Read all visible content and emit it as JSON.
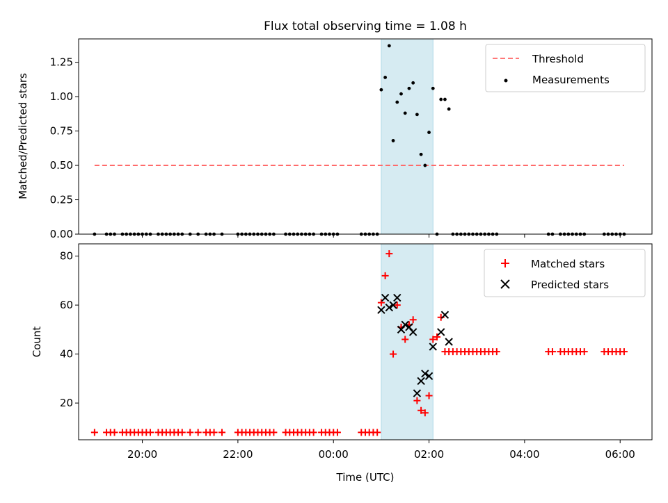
{
  "title": "Flux total observing time = 1.08 h",
  "colors": {
    "threshold": "#ff6666",
    "span": "#add8e6",
    "matched": "#ff0000",
    "predicted": "#000000",
    "measurement": "#000000"
  },
  "chart_data": [
    {
      "type": "scatter",
      "ylabel": "Matched/Predicted stars",
      "ylim": [
        0,
        1.42
      ],
      "yticks": [
        0.0,
        0.25,
        0.5,
        0.75,
        1.0,
        1.25
      ],
      "ytick_labels": [
        "0.00",
        "0.25",
        "0.50",
        "0.75",
        "1.00",
        "1.25"
      ],
      "legend": {
        "position": "top-right",
        "entries": [
          "Threshold",
          "Measurements"
        ]
      },
      "threshold": {
        "y": 0.5,
        "x_start": "19:00",
        "x_end": "06:05"
      },
      "shaded_span": {
        "x_start": "01:00",
        "x_end": "02:05"
      },
      "series": [
        {
          "name": "Measurements",
          "x": [
            "19:00",
            "19:15",
            "19:20",
            "19:25",
            "19:35",
            "19:40",
            "19:45",
            "19:50",
            "19:55",
            "20:00",
            "20:05",
            "20:10",
            "20:20",
            "20:25",
            "20:30",
            "20:35",
            "20:40",
            "20:45",
            "20:50",
            "21:00",
            "21:10",
            "21:20",
            "21:25",
            "21:30",
            "21:40",
            "22:00",
            "22:05",
            "22:10",
            "22:15",
            "22:20",
            "22:25",
            "22:30",
            "22:35",
            "22:40",
            "22:45",
            "23:00",
            "23:05",
            "23:10",
            "23:15",
            "23:20",
            "23:25",
            "23:30",
            "23:35",
            "23:45",
            "23:50",
            "23:55",
            "24:00",
            "24:05",
            "24:35",
            "24:40",
            "24:45",
            "24:50",
            "24:55",
            "25:00",
            "25:05",
            "25:10",
            "25:15",
            "25:20",
            "25:25",
            "25:30",
            "25:35",
            "25:40",
            "25:45",
            "25:50",
            "25:55",
            "26:00",
            "26:05",
            "26:10",
            "26:15",
            "26:20",
            "26:25",
            "26:30",
            "26:35",
            "26:40",
            "26:45",
            "26:50",
            "26:55",
            "27:00",
            "27:05",
            "27:10",
            "27:15",
            "27:20",
            "27:25",
            "28:30",
            "28:35",
            "28:45",
            "28:50",
            "28:55",
            "29:00",
            "29:05",
            "29:10",
            "29:15",
            "29:40",
            "29:45",
            "29:50",
            "29:55",
            "30:00",
            "30:05"
          ],
          "y": [
            0,
            0,
            0,
            0,
            0,
            0,
            0,
            0,
            0,
            0,
            0,
            0,
            0,
            0,
            0,
            0,
            0,
            0,
            0,
            0,
            0,
            0,
            0,
            0,
            0,
            0,
            0,
            0,
            0,
            0,
            0,
            0,
            0,
            0,
            0,
            0,
            0,
            0,
            0,
            0,
            0,
            0,
            0,
            0,
            0,
            0,
            0,
            0,
            0,
            0,
            0,
            0,
            0,
            1.05,
            1.14,
            1.37,
            0.68,
            0.96,
            1.02,
            0.88,
            1.06,
            1.1,
            0.87,
            0.58,
            0.5,
            0.74,
            1.06,
            0,
            0.98,
            0.98,
            0.91,
            0,
            0,
            0,
            0,
            0,
            0,
            0,
            0,
            0,
            0,
            0,
            0,
            0,
            0,
            0,
            0,
            0,
            0,
            0,
            0,
            0,
            0,
            0,
            0,
            0,
            0,
            0
          ]
        }
      ]
    },
    {
      "type": "scatter",
      "ylabel": "Count",
      "xlabel": "Time (UTC)",
      "ylim": [
        5,
        85
      ],
      "yticks": [
        20,
        40,
        60,
        80
      ],
      "ytick_labels": [
        "20",
        "40",
        "60",
        "80"
      ],
      "xlim": [
        "18:40",
        "06:40"
      ],
      "xticks": [
        "20:00",
        "22:00",
        "00:00",
        "02:00",
        "04:00",
        "06:00"
      ],
      "legend": {
        "position": "top-right",
        "entries": [
          "Matched stars",
          "Predicted stars"
        ]
      },
      "shaded_span": {
        "x_start": "01:00",
        "x_end": "02:05"
      },
      "series": [
        {
          "name": "Matched stars",
          "x": [
            "19:00",
            "19:15",
            "19:20",
            "19:25",
            "19:35",
            "19:40",
            "19:45",
            "19:50",
            "19:55",
            "20:00",
            "20:05",
            "20:10",
            "20:20",
            "20:25",
            "20:30",
            "20:35",
            "20:40",
            "20:45",
            "20:50",
            "21:00",
            "21:10",
            "21:20",
            "21:25",
            "21:30",
            "21:40",
            "22:00",
            "22:05",
            "22:10",
            "22:15",
            "22:20",
            "22:25",
            "22:30",
            "22:35",
            "22:40",
            "22:45",
            "23:00",
            "23:05",
            "23:10",
            "23:15",
            "23:20",
            "23:25",
            "23:30",
            "23:35",
            "23:45",
            "23:50",
            "23:55",
            "24:00",
            "24:05",
            "24:35",
            "24:40",
            "24:45",
            "24:50",
            "24:55",
            "25:00",
            "25:05",
            "25:10",
            "25:15",
            "25:20",
            "25:25",
            "25:30",
            "25:35",
            "25:40",
            "25:45",
            "25:50",
            "25:55",
            "26:00",
            "26:05",
            "26:10",
            "26:15",
            "26:20",
            "26:25",
            "26:30",
            "26:35",
            "26:40",
            "26:45",
            "26:50",
            "26:55",
            "27:00",
            "27:05",
            "27:10",
            "27:15",
            "27:20",
            "27:25",
            "28:30",
            "28:35",
            "28:45",
            "28:50",
            "28:55",
            "29:00",
            "29:05",
            "29:10",
            "29:15",
            "29:40",
            "29:45",
            "29:50",
            "29:55",
            "30:00",
            "30:05"
          ],
          "y": [
            8,
            8,
            8,
            8,
            8,
            8,
            8,
            8,
            8,
            8,
            8,
            8,
            8,
            8,
            8,
            8,
            8,
            8,
            8,
            8,
            8,
            8,
            8,
            8,
            8,
            8,
            8,
            8,
            8,
            8,
            8,
            8,
            8,
            8,
            8,
            8,
            8,
            8,
            8,
            8,
            8,
            8,
            8,
            8,
            8,
            8,
            8,
            8,
            8,
            8,
            8,
            8,
            8,
            61,
            72,
            81,
            40,
            60,
            51,
            46,
            52,
            54,
            21,
            17,
            16,
            23,
            46,
            47,
            55,
            41,
            41,
            41,
            41,
            41,
            41,
            41,
            41,
            41,
            41,
            41,
            41,
            41,
            41,
            41,
            41,
            41,
            41,
            41,
            41,
            41,
            41,
            41,
            41,
            41,
            41,
            41,
            41,
            41
          ]
        },
        {
          "name": "Predicted stars",
          "x": [
            "25:00",
            "25:05",
            "25:10",
            "25:15",
            "25:20",
            "25:25",
            "25:30",
            "25:35",
            "25:40",
            "25:45",
            "25:50",
            "25:55",
            "26:00",
            "26:05",
            "26:15",
            "26:20",
            "26:25"
          ],
          "y": [
            58,
            63,
            59,
            60,
            63,
            50,
            52,
            51,
            49,
            24,
            29,
            32,
            31,
            43,
            49,
            56,
            45
          ]
        }
      ]
    }
  ]
}
